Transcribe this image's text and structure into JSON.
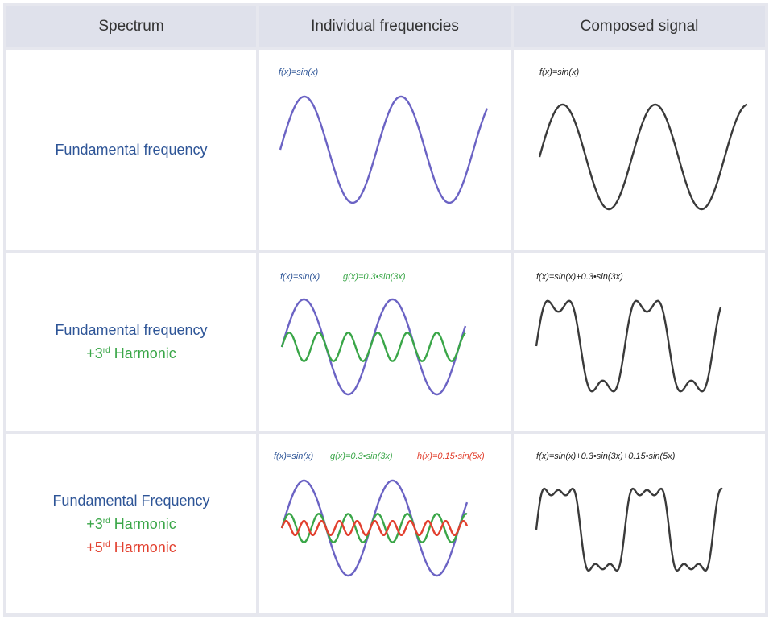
{
  "headers": [
    "Spectrum",
    "Individual frequencies",
    "Composed signal"
  ],
  "colors": {
    "fundamental": "#2e5597",
    "fundamental_wave": "#6b63c4",
    "third": "#3aa648",
    "fifth": "#e2402f",
    "composed": "#3a3a3a"
  },
  "rows": [
    {
      "spectrum": {
        "line1": "Fundamental frequency"
      },
      "individual": [
        {
          "formula": "f(x)=sin(x)",
          "amp": 1,
          "harm": 1,
          "color": "fundamental_wave",
          "text_color": "fundamental"
        }
      ],
      "composed": {
        "formula": "f(x)=sin(x)",
        "terms": [
          [
            1,
            1
          ]
        ]
      }
    },
    {
      "spectrum": {
        "line1": "Fundamental frequency",
        "line2_prefix": "+3",
        "line2_sup": "rd",
        "line2_suffix": " Harmonic"
      },
      "individual": [
        {
          "formula": "f(x)=sin(x)",
          "amp": 1,
          "harm": 1,
          "color": "fundamental_wave",
          "text_color": "fundamental"
        },
        {
          "formula": "g(x)=0.3•sin(3x)",
          "amp": 0.3,
          "harm": 3,
          "color": "third",
          "text_color": "third"
        }
      ],
      "composed": {
        "formula": "f(x)=sin(x)+0.3•sin(3x)",
        "terms": [
          [
            1,
            1
          ],
          [
            0.3,
            3
          ]
        ]
      }
    },
    {
      "spectrum": {
        "line1": "Fundamental Frequency",
        "line2_prefix": "+3",
        "line2_sup": "rd",
        "line2_suffix": " Harmonic",
        "line3_prefix": "+5",
        "line3_sup": "rd",
        "line3_suffix": " Harmonic"
      },
      "individual": [
        {
          "formula": "f(x)=sin(x)",
          "amp": 1,
          "harm": 1,
          "color": "fundamental_wave",
          "text_color": "fundamental"
        },
        {
          "formula": "g(x)=0.3•sin(3x)",
          "amp": 0.3,
          "harm": 3,
          "color": "third",
          "text_color": "third"
        },
        {
          "formula": "h(x)=0.15•sin(5x)",
          "amp": 0.15,
          "harm": 5,
          "color": "fifth",
          "text_color": "fifth"
        }
      ],
      "composed": {
        "formula": "f(x)=sin(x)+0.3•sin(3x)+0.15•sin(5x)",
        "terms": [
          [
            1,
            1
          ],
          [
            0.3,
            3
          ],
          [
            0.15,
            5
          ]
        ]
      }
    }
  ]
}
